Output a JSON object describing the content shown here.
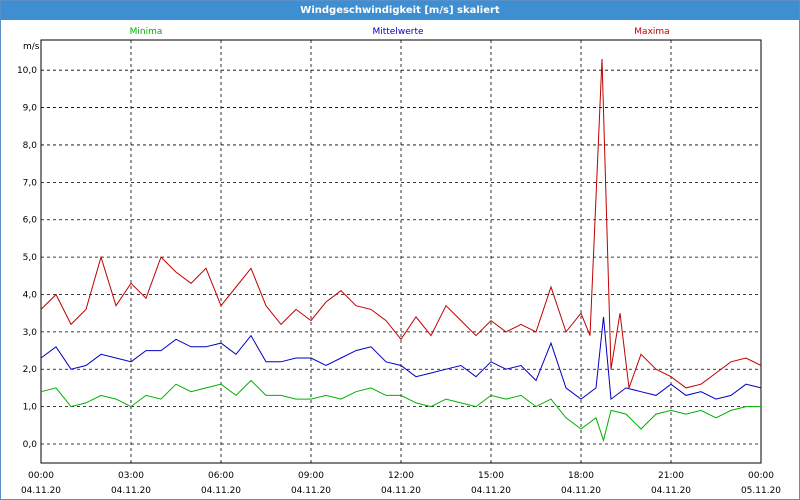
{
  "window": {
    "title": "Windgeschwindigkeit [m/s] skaliert"
  },
  "chart_data": {
    "type": "line",
    "title": "Windgeschwindigkeit [m/s] skaliert",
    "ylabel": "m/s",
    "ylim": [
      0,
      10.5
    ],
    "xlim": [
      0,
      24
    ],
    "grid": true,
    "legend": "top",
    "yticks": [
      "0,0",
      "1,0",
      "2,0",
      "3,0",
      "4,0",
      "5,0",
      "6,0",
      "7,0",
      "8,0",
      "9,0",
      "10,0"
    ],
    "xticks": [
      {
        "time": "00:00",
        "date": "04.11.20"
      },
      {
        "time": "03:00",
        "date": "04.11.20"
      },
      {
        "time": "06:00",
        "date": "04.11.20"
      },
      {
        "time": "09:00",
        "date": "04.11.20"
      },
      {
        "time": "12:00",
        "date": "04.11.20"
      },
      {
        "time": "15:00",
        "date": "04.11.20"
      },
      {
        "time": "18:00",
        "date": "04.11.20"
      },
      {
        "time": "21:00",
        "date": "04.11.20"
      },
      {
        "time": "00:00",
        "date": "05.11.20"
      }
    ],
    "series": [
      {
        "name": "Minima",
        "color": "#00b000",
        "x": [
          0,
          0.5,
          1,
          1.5,
          2,
          2.5,
          3,
          3.5,
          4,
          4.5,
          5,
          5.5,
          6,
          6.5,
          7,
          7.5,
          8,
          8.5,
          9,
          9.5,
          10,
          10.5,
          11,
          11.5,
          12,
          12.5,
          13,
          13.5,
          14,
          14.5,
          15,
          15.5,
          16,
          16.5,
          17,
          17.5,
          18,
          18.5,
          18.75,
          19,
          19.5,
          20,
          20.5,
          21,
          21.5,
          22,
          22.5,
          23,
          23.5,
          24
        ],
        "y": [
          1.4,
          1.5,
          1.0,
          1.1,
          1.3,
          1.2,
          1.0,
          1.3,
          1.2,
          1.6,
          1.4,
          1.5,
          1.6,
          1.3,
          1.7,
          1.3,
          1.3,
          1.2,
          1.2,
          1.3,
          1.2,
          1.4,
          1.5,
          1.3,
          1.3,
          1.1,
          1.0,
          1.2,
          1.1,
          1.0,
          1.3,
          1.2,
          1.3,
          1.0,
          1.2,
          0.7,
          0.4,
          0.7,
          0.1,
          0.9,
          0.8,
          0.4,
          0.8,
          0.9,
          0.8,
          0.9,
          0.7,
          0.9,
          1.0,
          1.0
        ]
      },
      {
        "name": "Mittelwerte",
        "color": "#0000c0",
        "x": [
          0,
          0.5,
          1,
          1.5,
          2,
          2.5,
          3,
          3.5,
          4,
          4.5,
          5,
          5.5,
          6,
          6.5,
          7,
          7.5,
          8,
          8.5,
          9,
          9.5,
          10,
          10.5,
          11,
          11.5,
          12,
          12.5,
          13,
          13.5,
          14,
          14.5,
          15,
          15.5,
          16,
          16.5,
          17,
          17.5,
          18,
          18.5,
          18.75,
          19,
          19.5,
          20,
          20.5,
          21,
          21.5,
          22,
          22.5,
          23,
          23.5,
          24
        ],
        "y": [
          2.3,
          2.6,
          2.0,
          2.1,
          2.4,
          2.3,
          2.2,
          2.5,
          2.5,
          2.8,
          2.6,
          2.6,
          2.7,
          2.4,
          2.9,
          2.2,
          2.2,
          2.3,
          2.3,
          2.1,
          2.3,
          2.5,
          2.6,
          2.2,
          2.1,
          1.8,
          1.9,
          2.0,
          2.1,
          1.8,
          2.2,
          2.0,
          2.1,
          1.7,
          2.7,
          1.5,
          1.2,
          1.5,
          3.4,
          1.2,
          1.5,
          1.4,
          1.3,
          1.6,
          1.3,
          1.4,
          1.2,
          1.3,
          1.6,
          1.5
        ]
      },
      {
        "name": "Maxima",
        "color": "#c00000",
        "x": [
          0,
          0.5,
          1,
          1.5,
          2,
          2.5,
          3,
          3.5,
          4,
          4.5,
          5,
          5.5,
          6,
          6.5,
          7,
          7.5,
          8,
          8.5,
          9,
          9.5,
          10,
          10.5,
          11,
          11.5,
          12,
          12.5,
          13,
          13.5,
          14,
          14.5,
          15,
          15.5,
          16,
          16.5,
          17,
          17.5,
          18,
          18.3,
          18.7,
          19,
          19.3,
          19.6,
          20,
          20.5,
          21,
          21.5,
          22,
          22.5,
          23,
          23.5,
          24
        ],
        "y": [
          3.6,
          4.0,
          3.2,
          3.6,
          5.0,
          3.7,
          4.3,
          3.9,
          5.0,
          4.6,
          4.3,
          4.7,
          3.7,
          4.2,
          4.7,
          3.7,
          3.2,
          3.6,
          3.3,
          3.8,
          4.1,
          3.7,
          3.6,
          3.3,
          2.8,
          3.4,
          2.9,
          3.7,
          3.3,
          2.9,
          3.3,
          3.0,
          3.2,
          3.0,
          4.2,
          3.0,
          3.5,
          2.9,
          10.3,
          2.0,
          3.5,
          1.5,
          2.4,
          2.0,
          1.8,
          1.5,
          1.6,
          1.9,
          2.2,
          2.3,
          2.1
        ]
      }
    ]
  }
}
